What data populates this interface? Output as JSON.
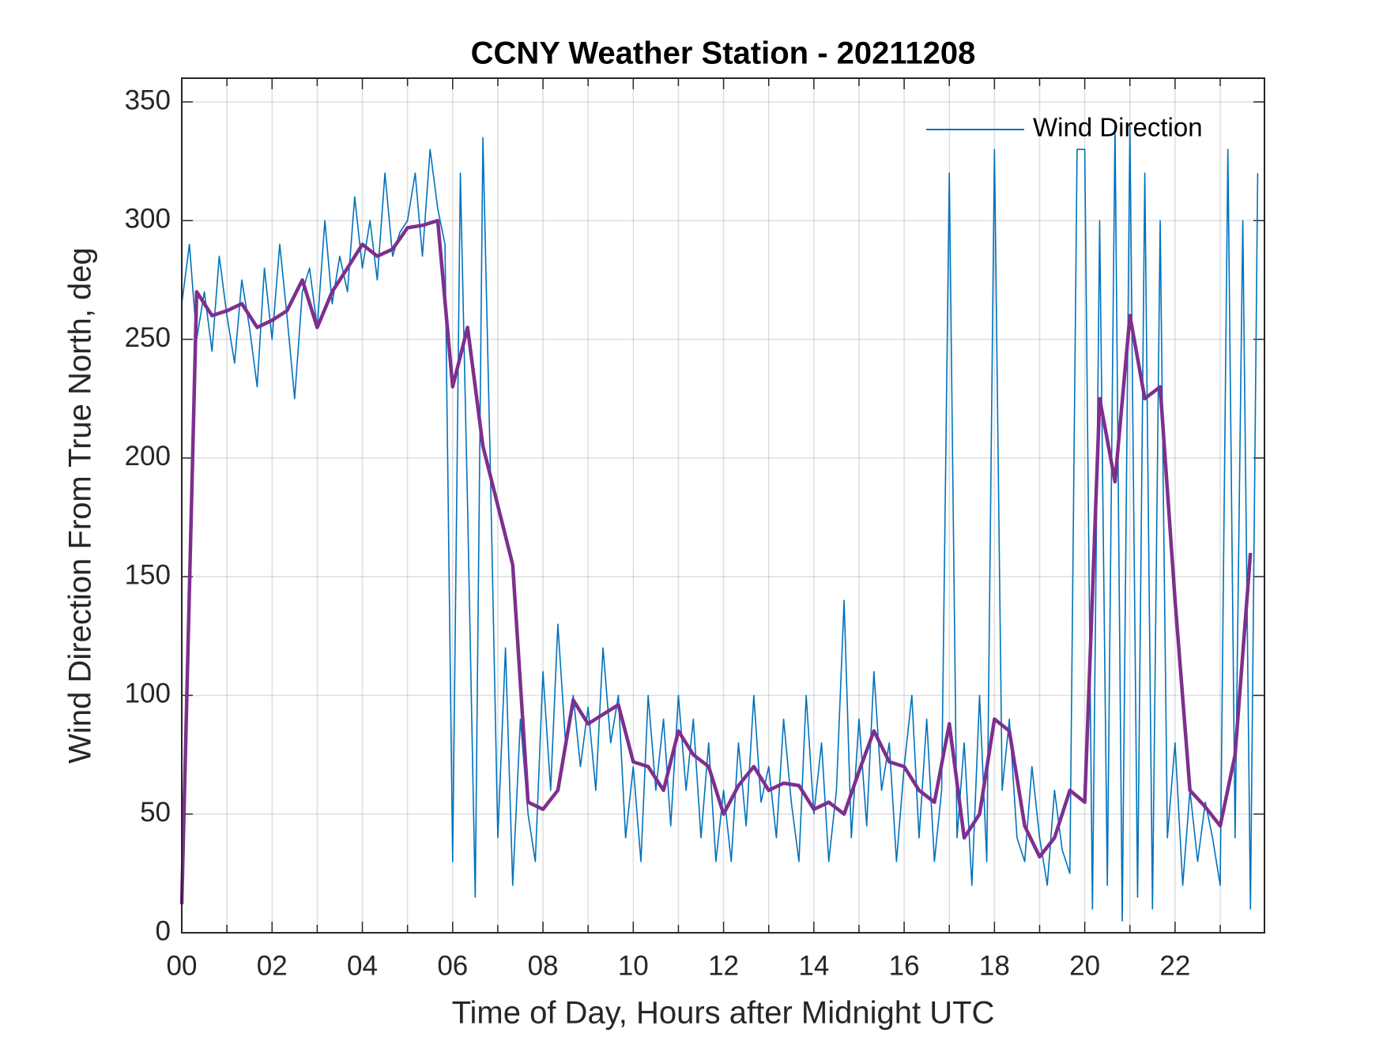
{
  "chart_data": {
    "type": "line",
    "title": "CCNY Weather Station - 20211208",
    "xlabel": "Time of Day, Hours after Midnight UTC",
    "ylabel": "Wind Direction From True North, deg",
    "xlim": [
      0,
      23.98
    ],
    "ylim": [
      0,
      360
    ],
    "xticks": [
      {
        "value": 0,
        "label": "00"
      },
      {
        "value": 2,
        "label": "02"
      },
      {
        "value": 4,
        "label": "04"
      },
      {
        "value": 6,
        "label": "06"
      },
      {
        "value": 8,
        "label": "08"
      },
      {
        "value": 10,
        "label": "10"
      },
      {
        "value": 12,
        "label": "12"
      },
      {
        "value": 14,
        "label": "14"
      },
      {
        "value": 16,
        "label": "16"
      },
      {
        "value": 18,
        "label": "18"
      },
      {
        "value": 20,
        "label": "20"
      },
      {
        "value": 22,
        "label": "22"
      }
    ],
    "yticks": [
      0,
      50,
      100,
      150,
      200,
      250,
      300,
      350
    ],
    "grid": true,
    "xminor_grid": true,
    "legend": "northeast",
    "x": [
      0,
      0.17,
      0.33,
      0.5,
      0.67,
      0.83,
      1,
      1.17,
      1.33,
      1.5,
      1.67,
      1.83,
      2,
      2.17,
      2.33,
      2.5,
      2.67,
      2.83,
      3,
      3.17,
      3.33,
      3.5,
      3.67,
      3.83,
      4,
      4.17,
      4.33,
      4.5,
      4.67,
      4.83,
      5,
      5.17,
      5.33,
      5.5,
      5.67,
      5.83,
      6,
      6.17,
      6.33,
      6.5,
      6.67,
      6.83,
      7,
      7.17,
      7.33,
      7.5,
      7.67,
      7.83,
      8,
      8.17,
      8.33,
      8.5,
      8.67,
      8.83,
      9,
      9.17,
      9.33,
      9.5,
      9.67,
      9.83,
      10,
      10.17,
      10.33,
      10.5,
      10.67,
      10.83,
      11,
      11.17,
      11.33,
      11.5,
      11.67,
      11.83,
      12,
      12.17,
      12.33,
      12.5,
      12.67,
      12.83,
      13,
      13.17,
      13.33,
      13.5,
      13.67,
      13.83,
      14,
      14.17,
      14.33,
      14.5,
      14.67,
      14.83,
      15,
      15.17,
      15.33,
      15.5,
      15.67,
      15.83,
      16,
      16.17,
      16.33,
      16.5,
      16.67,
      16.83,
      17,
      17.17,
      17.33,
      17.5,
      17.67,
      17.83,
      18,
      18.17,
      18.33,
      18.5,
      18.67,
      18.83,
      19,
      19.17,
      19.33,
      19.5,
      19.67,
      19.83,
      20,
      20.17,
      20.33,
      20.5,
      20.67,
      20.83,
      21,
      21.17,
      21.33,
      21.5,
      21.67,
      21.83,
      22,
      22.17,
      22.33,
      22.5,
      22.67,
      22.83,
      23,
      23.17,
      23.33,
      23.5,
      23.67,
      23.83
    ],
    "series": [
      {
        "name": "Wind Direction",
        "color": "#0072bd",
        "values": [
          265,
          290,
          250,
          270,
          245,
          285,
          260,
          240,
          275,
          255,
          230,
          280,
          250,
          290,
          260,
          225,
          270,
          280,
          255,
          300,
          265,
          285,
          270,
          310,
          280,
          300,
          275,
          320,
          285,
          295,
          300,
          320,
          285,
          330,
          305,
          290,
          30,
          320,
          180,
          15,
          335,
          200,
          40,
          120,
          20,
          90,
          50,
          30,
          110,
          60,
          130,
          80,
          100,
          70,
          95,
          60,
          120,
          80,
          100,
          40,
          70,
          30,
          100,
          60,
          90,
          45,
          100,
          60,
          90,
          40,
          80,
          30,
          60,
          30,
          80,
          45,
          100,
          55,
          70,
          40,
          90,
          55,
          30,
          100,
          50,
          80,
          30,
          60,
          140,
          40,
          90,
          45,
          110,
          60,
          80,
          30,
          70,
          100,
          40,
          90,
          30,
          60,
          320,
          40,
          80,
          20,
          100,
          30,
          330,
          60,
          90,
          40,
          30,
          70,
          40,
          20,
          60,
          35,
          25,
          330,
          330,
          10,
          300,
          20,
          340,
          5,
          340,
          15,
          320,
          10,
          300,
          40,
          80,
          20,
          60,
          30,
          55,
          40,
          20,
          330,
          40,
          300,
          10,
          320
        ]
      },
      {
        "color": "#7e2f8e",
        "x": [
          0,
          0.33,
          0.67,
          1,
          1.33,
          1.67,
          2,
          2.33,
          2.67,
          3,
          3.33,
          3.67,
          4,
          4.33,
          4.67,
          5,
          5.33,
          5.67,
          6,
          6.33,
          6.67,
          7,
          7.33,
          7.67,
          8,
          8.33,
          8.67,
          9,
          9.33,
          9.67,
          10,
          10.33,
          10.67,
          11,
          11.33,
          11.67,
          12,
          12.33,
          12.67,
          13,
          13.33,
          13.67,
          14,
          14.33,
          14.67,
          15,
          15.33,
          15.67,
          16,
          16.33,
          16.67,
          17,
          17.33,
          17.67,
          18,
          18.33,
          18.67,
          19,
          19.33,
          19.67,
          20,
          20.33,
          20.67,
          21,
          21.33,
          21.67,
          22,
          22.33,
          22.67,
          23,
          23.33,
          23.67
        ],
        "values": [
          12,
          270,
          260,
          262,
          265,
          255,
          258,
          262,
          275,
          255,
          270,
          280,
          290,
          285,
          288,
          297,
          298,
          300,
          230,
          255,
          205,
          180,
          155,
          55,
          52,
          60,
          98,
          88,
          92,
          96,
          72,
          70,
          60,
          85,
          75,
          70,
          50,
          62,
          70,
          60,
          63,
          62,
          52,
          55,
          50,
          68,
          85,
          72,
          70,
          60,
          55,
          88,
          40,
          50,
          90,
          85,
          45,
          32,
          40,
          60,
          55,
          225,
          190,
          260,
          225,
          230,
          140,
          60,
          53,
          45,
          75,
          160
        ]
      }
    ]
  }
}
